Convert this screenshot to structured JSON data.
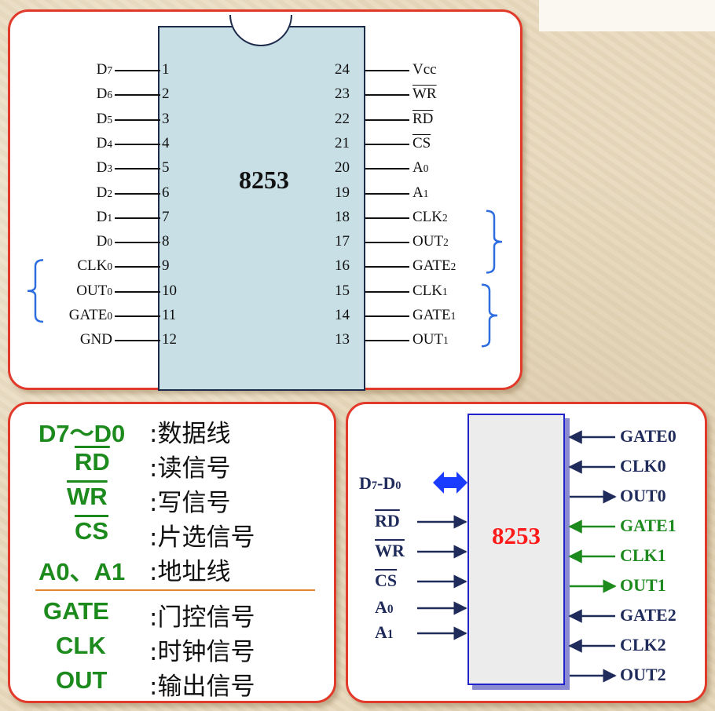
{
  "pinout": {
    "chip_name": "8253",
    "left_pins": [
      {
        "num": "1",
        "label": "D7"
      },
      {
        "num": "2",
        "label": "D6"
      },
      {
        "num": "3",
        "label": "D5"
      },
      {
        "num": "4",
        "label": "D4"
      },
      {
        "num": "5",
        "label": "D3"
      },
      {
        "num": "6",
        "label": "D2"
      },
      {
        "num": "7",
        "label": "D1"
      },
      {
        "num": "8",
        "label": "D0"
      },
      {
        "num": "9",
        "label": "CLK0"
      },
      {
        "num": "10",
        "label": "OUT0"
      },
      {
        "num": "11",
        "label": "GATE0"
      },
      {
        "num": "12",
        "label": "GND"
      }
    ],
    "right_pins": [
      {
        "num": "24",
        "label": "Vcc",
        "overline": false
      },
      {
        "num": "23",
        "label": "WR",
        "overline": true
      },
      {
        "num": "22",
        "label": "RD",
        "overline": true
      },
      {
        "num": "21",
        "label": "CS",
        "overline": true
      },
      {
        "num": "20",
        "label": "A0",
        "overline": false
      },
      {
        "num": "19",
        "label": "A1",
        "overline": false
      },
      {
        "num": "18",
        "label": "CLK2",
        "overline": false
      },
      {
        "num": "17",
        "label": "OUT2",
        "overline": false
      },
      {
        "num": "16",
        "label": "GATE2",
        "overline": false
      },
      {
        "num": "15",
        "label": "CLK1",
        "overline": false
      },
      {
        "num": "14",
        "label": "GATE1",
        "overline": false
      },
      {
        "num": "13",
        "label": "OUT1",
        "overline": false
      }
    ],
    "bracket_color": "#2d6de0"
  },
  "legend": {
    "rows": [
      {
        "key": "D7～D0",
        "value": ":数据线",
        "overline": false
      },
      {
        "key": "RD",
        "value": ":读信号",
        "overline": true
      },
      {
        "key": "WR",
        "value": ":写信号",
        "overline": true
      },
      {
        "key": "CS",
        "value": ":片选信号",
        "overline": true
      },
      {
        "key": "A0、A1",
        "value": ":地址线",
        "overline": false
      },
      {
        "key": "GATE",
        "value": ":门控信号",
        "overline": false
      },
      {
        "key": "CLK",
        "value": ":时钟信号",
        "overline": false
      },
      {
        "key": "OUT",
        "value": ":输出信号",
        "overline": false
      }
    ],
    "key_color": "#1d8a1d",
    "divider_color": "#e8852f"
  },
  "block": {
    "chip_name": "8253",
    "data_bus_label": "D7-D0",
    "inputs": [
      {
        "label": "RD",
        "overline": true
      },
      {
        "label": "WR",
        "overline": true
      },
      {
        "label": "CS",
        "overline": true
      },
      {
        "label": "A0",
        "overline": false
      },
      {
        "label": "A1",
        "overline": false
      }
    ],
    "outputs": [
      {
        "label": "GATE0",
        "direction": "in",
        "color": "navy"
      },
      {
        "label": "CLK0",
        "direction": "in",
        "color": "navy"
      },
      {
        "label": "OUT0",
        "direction": "out",
        "color": "navy"
      },
      {
        "label": "GATE1",
        "direction": "in",
        "color": "green"
      },
      {
        "label": "CLK1",
        "direction": "in",
        "color": "green"
      },
      {
        "label": "OUT1",
        "direction": "out",
        "color": "green"
      },
      {
        "label": "GATE2",
        "direction": "in",
        "color": "navy"
      },
      {
        "label": "CLK2",
        "direction": "in",
        "color": "navy"
      },
      {
        "label": "OUT2",
        "direction": "out",
        "color": "navy"
      }
    ],
    "chip_name_color": "#ff1a1a",
    "bus_arrow_color": "#1a3cff"
  }
}
